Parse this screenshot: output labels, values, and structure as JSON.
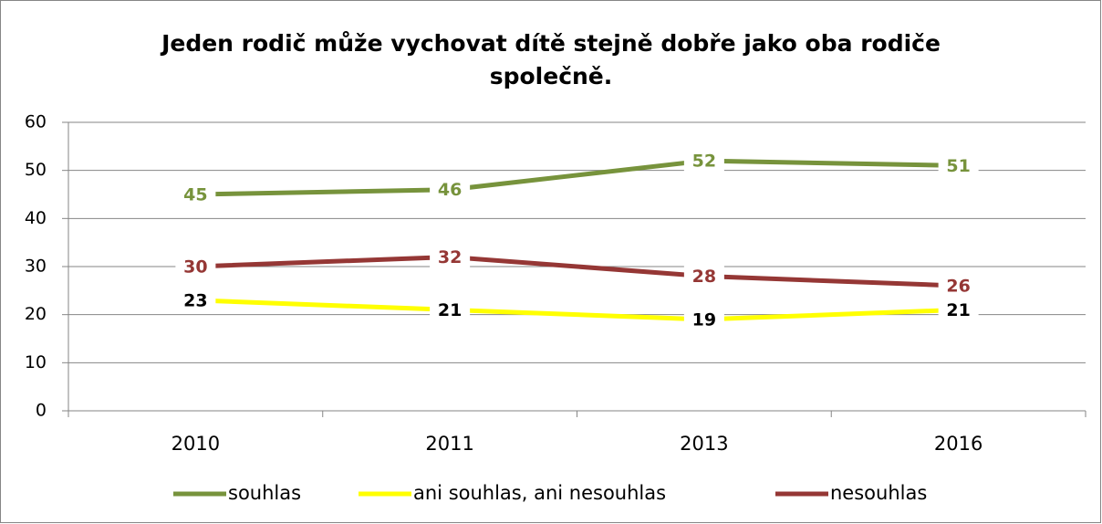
{
  "chart_data": {
    "type": "line",
    "title": "Jeden rodič může vychovat dítě stejně dobře jako oba rodiče společně.",
    "categories": [
      "2010",
      "2011",
      "2013",
      "2016"
    ],
    "series": [
      {
        "name": "souhlas",
        "color": "#77933c",
        "label_color": "#77933c",
        "values": [
          45,
          46,
          52,
          51
        ]
      },
      {
        "name": "ani souhlas, ani nesouhlas",
        "color": "#ffff00",
        "label_color": "#000000",
        "values": [
          23,
          21,
          19,
          21
        ]
      },
      {
        "name": "nesouhlas",
        "color": "#953735",
        "label_color": "#953735",
        "values": [
          30,
          32,
          28,
          26
        ]
      }
    ],
    "ylim": [
      0,
      60
    ],
    "yticks": [
      0,
      10,
      20,
      30,
      40,
      50,
      60
    ],
    "grid": true,
    "legend": "bottom"
  }
}
